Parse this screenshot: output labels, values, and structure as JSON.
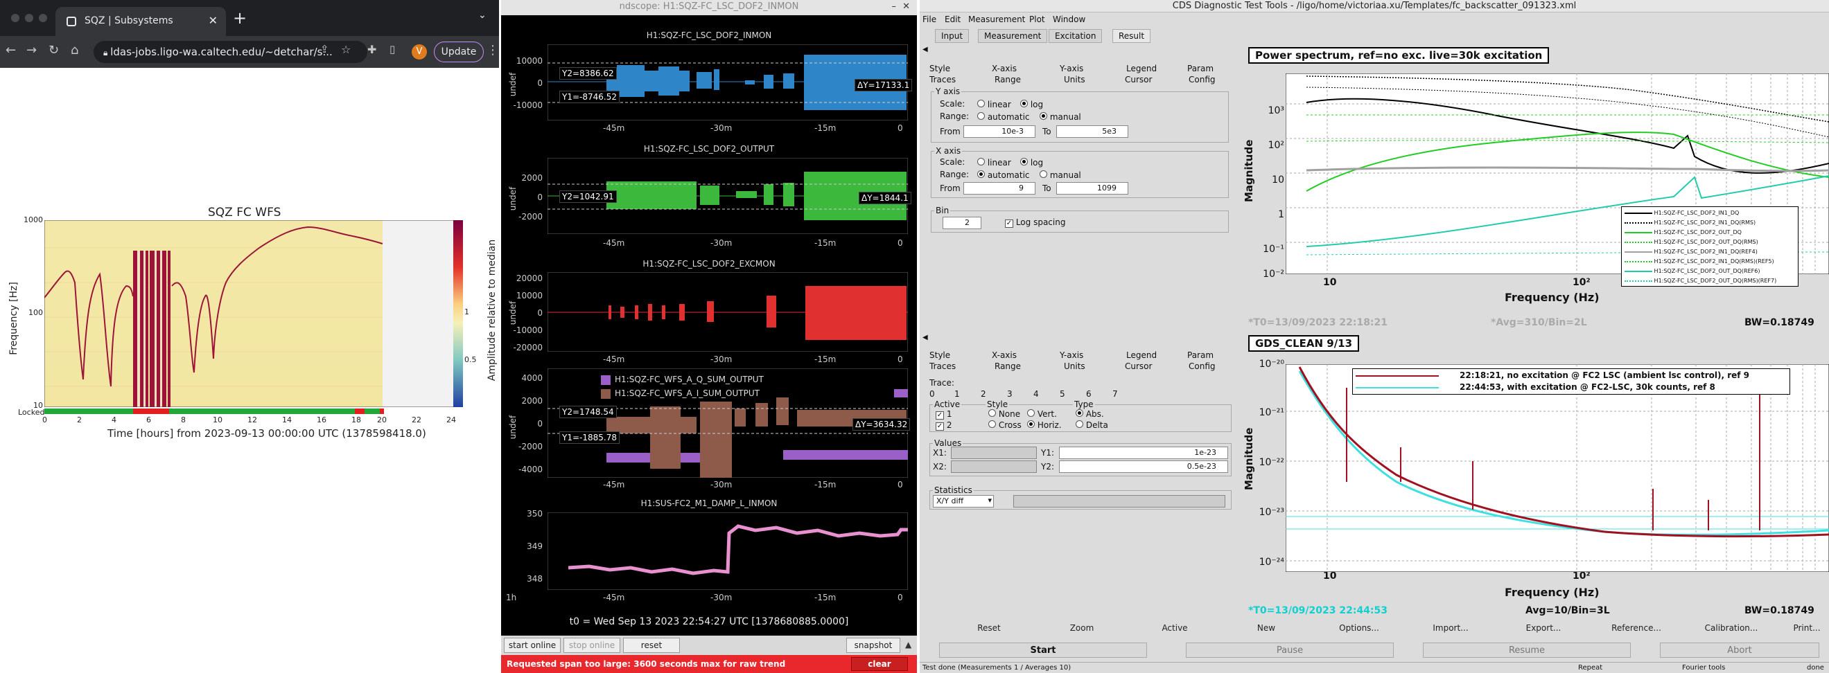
{
  "browser": {
    "tab_title": "SQZ | Subsystems",
    "url": "ldas-jobs.ligo-wa.caltech.edu/~detchar/s...",
    "avatar_letter": "V",
    "update_label": "Update"
  },
  "spectrogram": {
    "title": "SQZ FC WFS",
    "ylabel": "Frequency [Hz]",
    "xlabel": "Time [hours] from 2023-09-13 00:00:00 UTC (1378598418.0)",
    "colorbar_label": "Amplitude relative to median",
    "yticks": [
      "1000",
      "100",
      "10"
    ],
    "xticks": [
      "0",
      "2",
      "4",
      "6",
      "8",
      "10",
      "12",
      "14",
      "16",
      "18",
      "20",
      "22",
      "24"
    ],
    "cbar_ticks": [
      "1",
      "0.5"
    ],
    "locked_label": "Locked"
  },
  "ndscope": {
    "window_title": "ndscope: H1:SQZ-FC_LSC_DOF2_INMON",
    "plots": [
      {
        "title": "H1:SQZ-FC_LSC_DOF2_INMON",
        "yunit": "undef",
        "yticks": [
          "10000",
          "0",
          "-10000"
        ],
        "y2": "Y2=8386.62",
        "y1": "Y1=-8746.52",
        "dy": "ΔY=17133.1"
      },
      {
        "title": "H1:SQZ-FC_LSC_DOF2_OUTPUT",
        "yunit": "undef",
        "yticks": [
          "2000",
          "0",
          "-2000"
        ],
        "y2": "Y2=1042.91",
        "dy": "ΔY=1844.1"
      },
      {
        "title": "H1:SQZ-FC_LSC_DOF2_EXCMON",
        "yunit": "undef",
        "yticks": [
          "20000",
          "10000",
          "0",
          "-10000",
          "-20000"
        ]
      },
      {
        "title": "",
        "yunit": "undef",
        "yticks": [
          "4000",
          "2000",
          "0",
          "-2000",
          "-4000"
        ],
        "y2": "Y2=1748.54",
        "y1": "Y1=-1885.78",
        "dy": "ΔY=3634.32",
        "legend": [
          "H1:SQZ-FC_WFS_A_Q_SUM_OUTPUT",
          "H1:SQZ-FC_WFS_A_I_SUM_OUTPUT"
        ]
      },
      {
        "title": "H1:SUS-FC2_M1_DAMP_L_INMON",
        "yunit": "",
        "yticks": [
          "350",
          "349",
          "348"
        ]
      }
    ],
    "xticks": [
      "-45m",
      "-30m",
      "-15m",
      "0"
    ],
    "last_xticks": [
      "1h",
      "-45m",
      "-30m",
      "-15m",
      "0"
    ],
    "t0": "t0 = Wed Sep 13 2023 22:54:27 UTC [1378680885.0000]",
    "buttons": {
      "start_online": "start online",
      "stop_online": "stop online",
      "reset": "reset",
      "snapshot": "snapshot",
      "clear": "clear"
    },
    "error": "Requested span too large: 3600 seconds max for raw trend"
  },
  "diag": {
    "window_title": "CDS Diagnostic Test Tools - /ligo/home/victoriaa.xu/Templates/fc_backscatter_091323.xml",
    "menu": [
      "File",
      "Edit",
      "Measurement",
      "Plot",
      "Window"
    ],
    "tabs": [
      "Input",
      "Measurement",
      "Excitation",
      "Result"
    ],
    "sub_tabs_row1": [
      "Style",
      "X-axis",
      "Y-axis",
      "Legend",
      "Param"
    ],
    "sub_tabs_row2": [
      "Traces",
      "Range",
      "Units",
      "Cursor",
      "Config"
    ],
    "yaxis": {
      "label": "Y axis",
      "scale": "Scale:",
      "linear": "linear",
      "log": "log",
      "range": "Range:",
      "automatic": "automatic",
      "manual": "manual",
      "from": "From",
      "from_val": "10e-3",
      "to": "To",
      "to_val": "5e3"
    },
    "xaxis": {
      "label": "X axis",
      "scale": "Scale:",
      "linear": "linear",
      "log": "log",
      "range": "Range:",
      "automatic": "automatic",
      "manual": "manual",
      "from": "From",
      "from_val": "9",
      "to": "To",
      "to_val": "1099"
    },
    "bin": {
      "label": "Bin",
      "value": "2",
      "log_spacing": "Log spacing"
    },
    "cursor": {
      "trace_label": "Trace:",
      "traces": [
        "0",
        "1",
        "2",
        "3",
        "4",
        "5",
        "6",
        "7"
      ],
      "active": "Active",
      "style": "Style",
      "type": "Type",
      "a1": "1",
      "a2": "2",
      "none": "None",
      "vert": "Vert.",
      "cross": "Cross",
      "horiz": "Horiz.",
      "abs": "Abs.",
      "delta": "Delta",
      "values": "Values",
      "x1": "X1:",
      "x2": "X2:",
      "y1": "Y1:",
      "y1_val": "1e-23",
      "y2": "Y2:",
      "y2_val": "0.5e-23",
      "statistics": "Statistics",
      "stat_sel": "X/Y diff"
    },
    "plot1": {
      "title": "Power spectrum, ref=no exc. live=30k excitation",
      "ylabel": "Magnitude",
      "xlabel": "Frequency (Hz)",
      "yticks": [
        "10³",
        "10²",
        "10",
        "1",
        "10⁻¹",
        "10⁻²"
      ],
      "xticks": [
        "10",
        "10²"
      ],
      "legend": [
        "H1:SQZ-FC_LSC_DOF2_IN1_DQ",
        "H1:SQZ-FC_LSC_DOF2_IN1_DQ(RMS)",
        "H1:SQZ-FC_LSC_DOF2_OUT_DQ",
        "H1:SQZ-FC_LSC_DOF2_OUT_DQ(RMS)",
        "H1:SQZ-FC_LSC_DOF2_IN1_DQ(REF4)",
        "H1:SQZ-FC_LSC_DOF2_IN1_DQ(RMS)(REF5)",
        "H1:SQZ-FC_LSC_DOF2_OUT_DQ(REF6)",
        "H1:SQZ-FC_LSC_DOF2_OUT_DQ(RMS)(REF7)"
      ],
      "t0": "*T0=13/09/2023 22:18:21",
      "avg": "*Avg=310/Bin=2L",
      "bw": "BW=0.18749"
    },
    "plot2": {
      "title": "GDS_CLEAN 9/13",
      "ylabel": "Magnitude",
      "xlabel": "Frequency (Hz)",
      "yticks": [
        "10⁻²⁰",
        "10⁻²¹",
        "10⁻²²",
        "10⁻²³",
        "10⁻²⁴"
      ],
      "xticks": [
        "10",
        "10²"
      ],
      "legend": [
        "22:18:21, no excitation @ FC2 LSC (ambient lsc control), ref 9",
        "22:44:53, with excitation @ FC2-LSC, 30k counts, ref 8"
      ],
      "t0": "*T0=13/09/2023 22:44:53",
      "avg": "Avg=10/Bin=3L",
      "bw": "BW=0.18749"
    },
    "bottom_buttons": [
      "Reset",
      "Zoom",
      "Active",
      "New",
      "Options...",
      "Import...",
      "Export...",
      "Reference...",
      "Calibration...",
      "Print..."
    ],
    "run_buttons": [
      "Start",
      "Pause",
      "Resume",
      "Abort"
    ],
    "status": {
      "main": "Test done (Measurements 1 / Averages 10)",
      "repeat": "Repeat",
      "fourier": "Fourier tools",
      "done": "done"
    },
    "colors": {
      "black": "#000000",
      "green": "#22cc22",
      "teal": "#22ccaa",
      "gray": "#a0a0a0",
      "darkred": "#a01020",
      "cyan": "#40e0e0"
    }
  }
}
